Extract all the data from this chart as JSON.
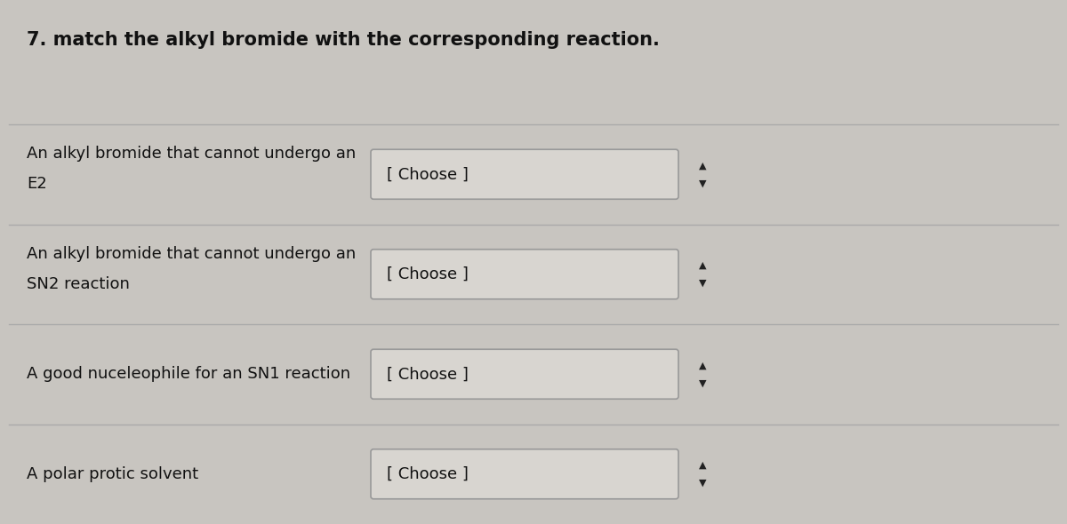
{
  "title": "7. match the alkyl bromide with the corresponding reaction.",
  "title_fontsize": 15,
  "title_fontweight": "bold",
  "bg_color": "#c8c5c0",
  "separator_color": "#aaaaaa",
  "rows": [
    {
      "label_line1": "An alkyl bromide that cannot undergo an",
      "label_line2": "E2",
      "dropdown_text": "[ Choose ]"
    },
    {
      "label_line1": "An alkyl bromide that cannot undergo an",
      "label_line2": "SN2 reaction",
      "dropdown_text": "[ Choose ]"
    },
    {
      "label_line1": "A good nuceleophile for an SN1 reaction",
      "label_line2": "",
      "dropdown_text": "[ Choose ]"
    },
    {
      "label_line1": "A polar protic solvent",
      "label_line2": "",
      "dropdown_text": "[ Choose ]"
    }
  ],
  "dropdown_box_color": "#d8d5d0",
  "dropdown_border_color": "#999999",
  "dropdown_text_color": "#111111",
  "label_text_color": "#111111",
  "label_fontsize": 13,
  "dropdown_fontsize": 13,
  "arrow_symbol": "◆",
  "arrow_color": "#222222",
  "arrow_fontsize": 12
}
